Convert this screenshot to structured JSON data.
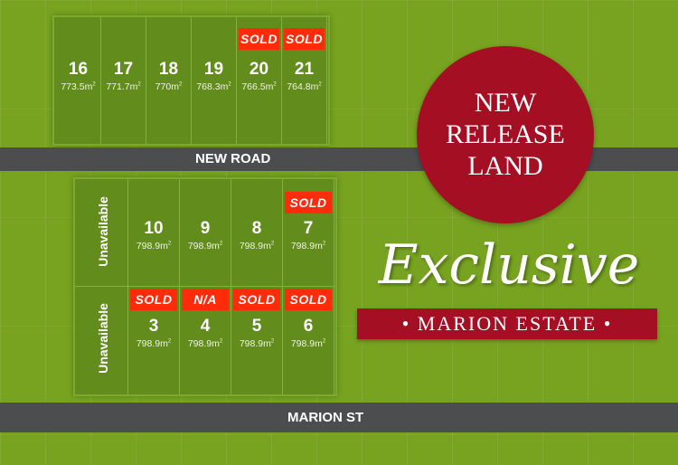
{
  "roads": {
    "new_road": "NEW ROAD",
    "marion_st": "MARION ST"
  },
  "top_lots": [
    {
      "number": "16",
      "area": "773.5m",
      "status": ""
    },
    {
      "number": "17",
      "area": "771.7m",
      "status": ""
    },
    {
      "number": "18",
      "area": "770m",
      "status": ""
    },
    {
      "number": "19",
      "area": "768.3m",
      "status": ""
    },
    {
      "number": "20",
      "area": "766.5m",
      "status": "SOLD"
    },
    {
      "number": "21",
      "area": "764.8m",
      "status": "SOLD"
    }
  ],
  "lower_top_row": [
    {
      "number": "10",
      "area": "798.9m",
      "status": ""
    },
    {
      "number": "9",
      "area": "798.9m",
      "status": ""
    },
    {
      "number": "8",
      "area": "798.9m",
      "status": ""
    },
    {
      "number": "7",
      "area": "798.9m",
      "status": "SOLD"
    }
  ],
  "lower_bottom_row": [
    {
      "number": "3",
      "area": "798.9m",
      "status": "SOLD"
    },
    {
      "number": "4",
      "area": "798.9m",
      "status": "N/A"
    },
    {
      "number": "5",
      "area": "798.9m",
      "status": "SOLD"
    },
    {
      "number": "6",
      "area": "798.9m",
      "status": "SOLD"
    }
  ],
  "unavailable": [
    "Unavailable",
    "Unavailable"
  ],
  "area_unit_sup": "2",
  "promo": {
    "circle_lines": [
      "NEW",
      "RELEASE",
      "LAND"
    ],
    "script_title": "Exclusive",
    "banner": "• MARION ESTATE •"
  },
  "colors": {
    "grass": "#77a320",
    "lot": "#628d1d",
    "sold_badge": "#ff2b0a",
    "road": "#4b4d4f",
    "brand_red": "#a50f24"
  }
}
